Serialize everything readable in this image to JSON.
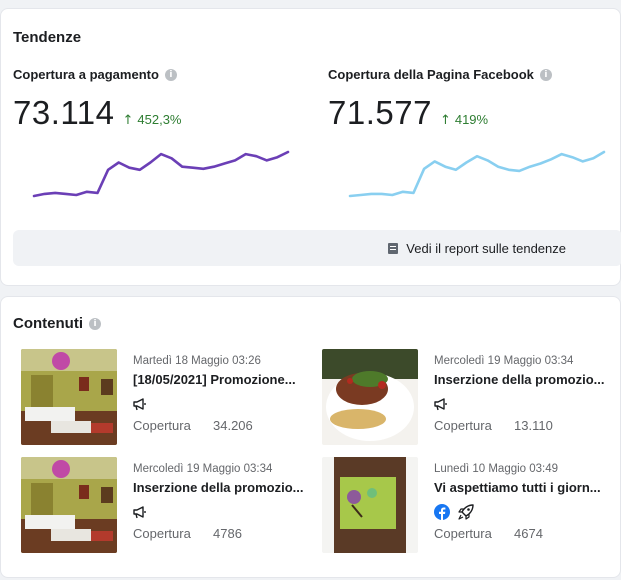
{
  "trends": {
    "title": "Tendenze",
    "metrics": [
      {
        "label": "Copertura a pagamento",
        "value": "73.114",
        "change": "452,3%",
        "color": "#6b3fb6",
        "trend": [
          10,
          12,
          13,
          12,
          11,
          14,
          13,
          35,
          42,
          37,
          35,
          42,
          50,
          46,
          38,
          37,
          36,
          38,
          41,
          44,
          50,
          48,
          44,
          47,
          52
        ]
      },
      {
        "label": "Copertura della Pagina Facebook",
        "value": "71.577",
        "change": "419%",
        "color": "#89cff0",
        "trend": [
          12,
          13,
          14,
          14,
          13,
          16,
          15,
          38,
          45,
          40,
          37,
          44,
          50,
          46,
          40,
          37,
          36,
          40,
          43,
          47,
          52,
          49,
          45,
          48,
          54
        ]
      }
    ],
    "report_link": "Vedi il report sulle tendenze"
  },
  "contents": {
    "title": "Contenuti",
    "posts": [
      {
        "date": "Martedì 18 Maggio 03:26",
        "title": "[18/05/2021] Promozione...",
        "icons": [
          "megaphone-icon"
        ],
        "reach_label": "Copertura",
        "reach_value": "34.206"
      },
      {
        "date": "Mercoledì 19 Maggio 03:34",
        "title": "Inserzione della promozio...",
        "icons": [
          "megaphone-icon"
        ],
        "reach_label": "Copertura",
        "reach_value": "13.110"
      },
      {
        "date": "Mercoledì 19 Maggio 03:34",
        "title": "Inserzione della promozio...",
        "icons": [
          "megaphone-icon"
        ],
        "reach_label": "Copertura",
        "reach_value": "4786"
      },
      {
        "date": "Lunedì 10 Maggio 03:49",
        "title": "Vi aspettiamo tutti i giorn...",
        "icons": [
          "facebook-icon",
          "rocket-icon"
        ],
        "reach_label": "Copertura",
        "reach_value": "4674"
      }
    ]
  }
}
